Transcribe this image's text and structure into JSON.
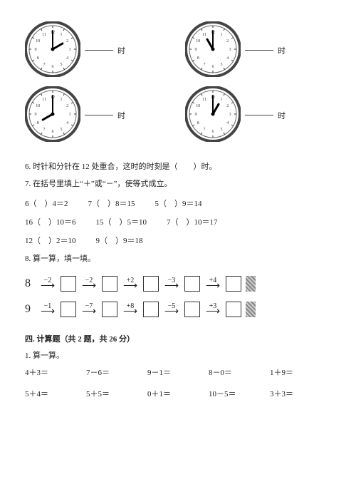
{
  "clocks": [
    {
      "hour": 2,
      "minute": 0,
      "label": "时"
    },
    {
      "hour": 11,
      "minute": 0,
      "label": "时"
    },
    {
      "hour": 8,
      "minute": 0,
      "label": "时"
    },
    {
      "hour": 1,
      "minute": 0,
      "label": "时"
    }
  ],
  "clock_style": {
    "size": 78,
    "face_fill": "#ffffff",
    "rim_outer": "#444444",
    "rim_inner": "#666666",
    "tick_color": "#333333",
    "numeral_color": "#333333",
    "numerals": [
      "12",
      "1",
      "2",
      "3",
      "4",
      "5",
      "6",
      "7",
      "8",
      "9",
      "10",
      "11"
    ],
    "hand_color": "#000000",
    "center_dot": "#000000",
    "numeral_fontsize": 6,
    "hour_hand_len": 16,
    "minute_hand_len": 26
  },
  "q6": "6. 时针和分针在 12 处重合，这时的时刻是（　　）时。",
  "q7": "7. 在括号里填上“＋”或“－”，使等式成立。",
  "eq_rows": [
    [
      "6（　）4＝2",
      "7（　）8＝15",
      "5（　）9＝14"
    ],
    [
      "16（　）10＝6",
      "15（　）5＝10",
      "7（　）10＝17"
    ],
    [
      "12（　）2＝10",
      "9（　）9＝18",
      ""
    ]
  ],
  "q8": "8. 算一算，填一填。",
  "chains": [
    {
      "start": "8",
      "steps": [
        "−2",
        "−2",
        "+2",
        "−3",
        "+4"
      ]
    },
    {
      "start": "9",
      "steps": [
        "−1",
        "−7",
        "+8",
        "−5",
        "+3"
      ]
    }
  ],
  "section4": "四. 计算题（共 2 题，共 26 分）",
  "calc_title": "1. 算一算。",
  "calc_rows": [
    [
      "4＋3＝",
      "7－6＝",
      "9－1＝",
      "8－0＝",
      "1＋9＝"
    ],
    [
      "5＋4＝",
      "5＋5＝",
      "0＋1＝",
      "10－5＝",
      "3＋3＝"
    ]
  ]
}
